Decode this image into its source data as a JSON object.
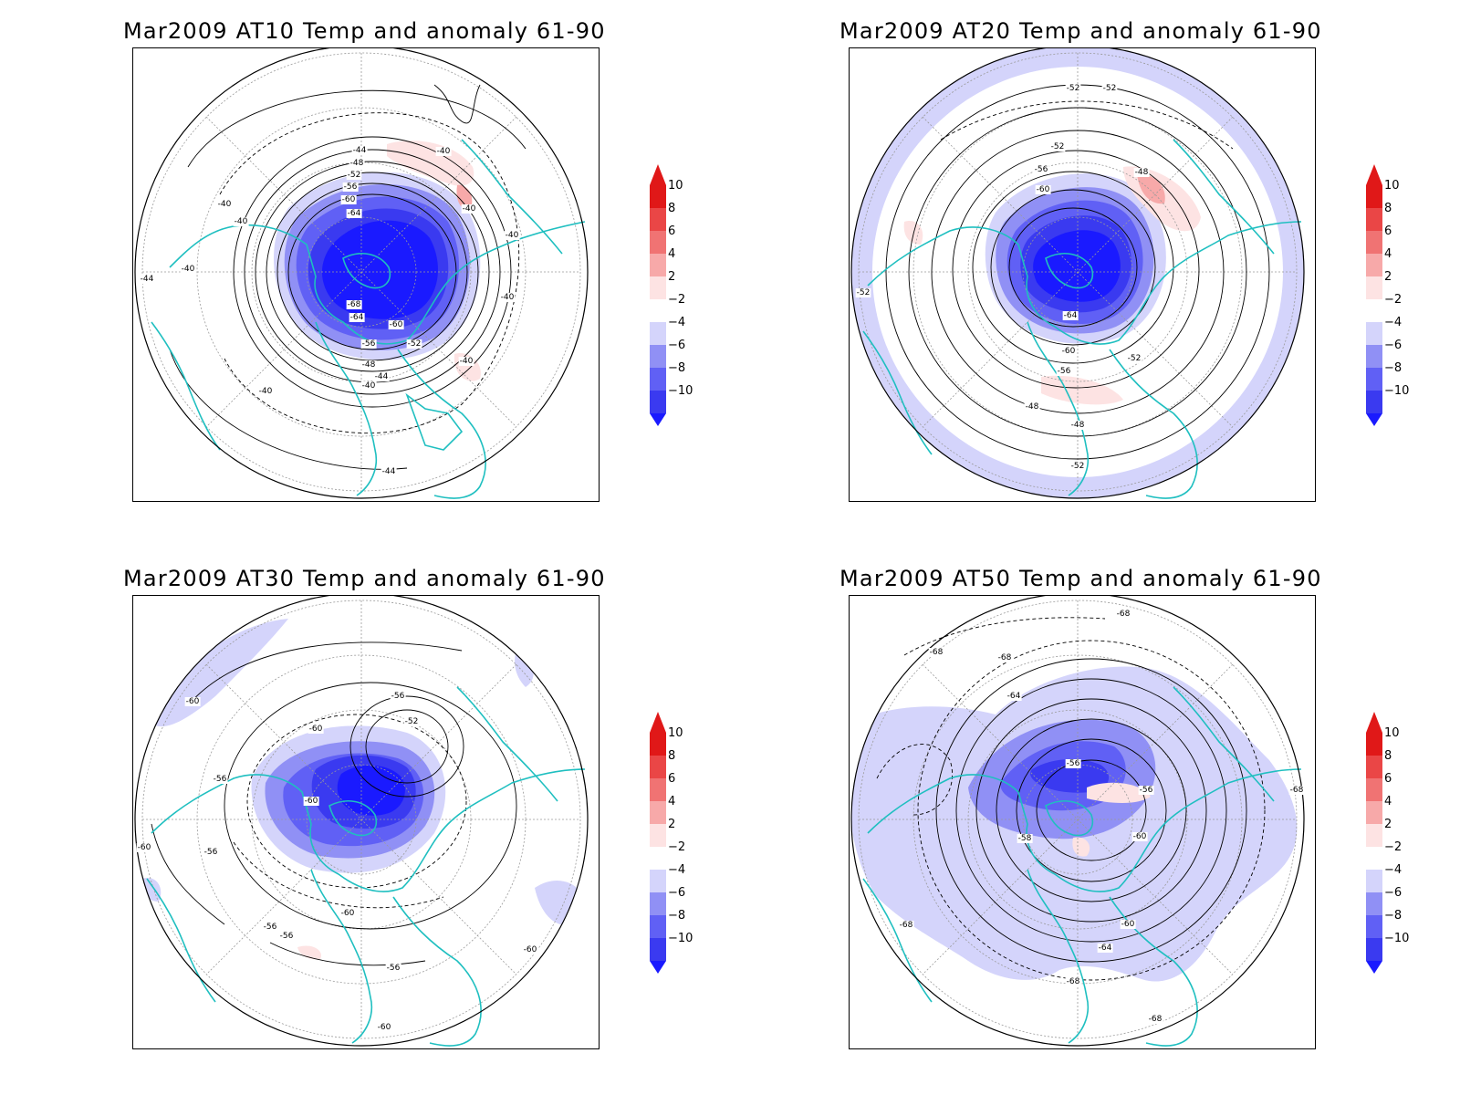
{
  "colors": {
    "coast": "#1fbfc0",
    "contour": "#000000",
    "grid": "#9a9a9a",
    "neg10": "#1a1aff",
    "neg8": "#3a3af0",
    "neg6": "#6060f5",
    "neg4": "#9090f5",
    "neg2": "#d4d4fb",
    "pos2": "#fde3e3",
    "pos4": "#f7a9a9",
    "pos6": "#f07373",
    "pos8": "#ea4646",
    "pos10": "#e01818"
  },
  "colorbar": {
    "labels": [
      "10",
      "8",
      "6",
      "4",
      "2",
      "−2",
      "−4",
      "−6",
      "−8",
      "−10"
    ]
  },
  "panels": [
    {
      "title": "Mar2009 AT10 Temp and anomaly 61-90",
      "contour_labels": [
        "-44",
        "-48",
        "-52",
        "-56",
        "-60",
        "-64",
        "-68",
        "-64",
        "-60",
        "-56",
        "-52",
        "-48",
        "-44",
        "-40",
        "-40",
        "-40",
        "-40",
        "-40",
        "-40",
        "-40",
        "-40",
        "-40",
        "-40",
        "-44",
        "-44"
      ]
    },
    {
      "title": "Mar2009 AT20 Temp and anomaly 61-90",
      "contour_labels": [
        "-52",
        "-52",
        "-52",
        "-56",
        "-60",
        "-48",
        "-64",
        "-60",
        "-56",
        "-52",
        "-48",
        "-48",
        "-52",
        "-52"
      ]
    },
    {
      "title": "Mar2009 AT30 Temp and anomaly 61-90",
      "contour_labels": [
        "-60",
        "-56",
        "-52",
        "-60",
        "-56",
        "-60",
        "-60",
        "-56",
        "-56",
        "-56",
        "-56",
        "-60",
        "-60",
        "-60"
      ]
    },
    {
      "title": "Mar2009 AT50 Temp and anomaly 61-90",
      "contour_labels": [
        "-68",
        "-68",
        "-68",
        "-64",
        "-56",
        "-56",
        "-58",
        "-60",
        "-60",
        "-64",
        "-68",
        "-68",
        "-68",
        "-68"
      ]
    }
  ]
}
